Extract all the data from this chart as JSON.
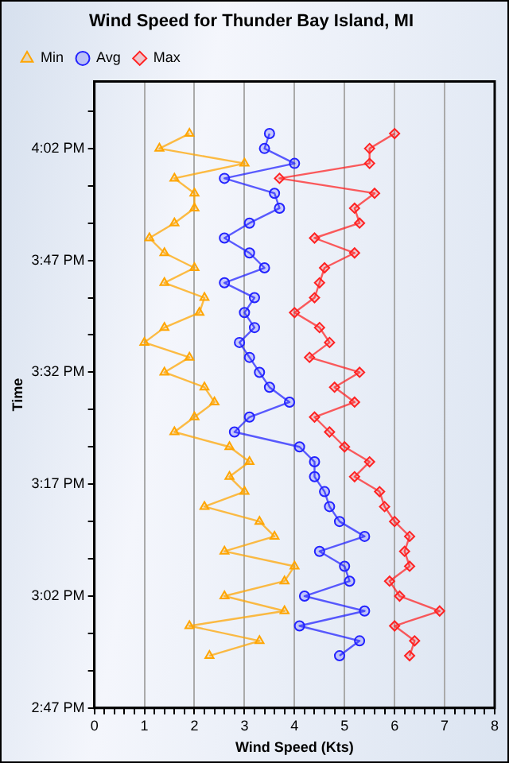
{
  "chart_data": {
    "type": "line",
    "title": "Wind Speed for Thunder Bay Island, MI",
    "xlabel": "Wind Speed (Kts)",
    "ylabel": "Time",
    "orientation": "horizontal",
    "x": [
      16.0667,
      16.0333,
      16.0,
      15.9667,
      15.9333,
      15.9,
      15.8667,
      15.8333,
      15.8,
      15.7667,
      15.7333,
      15.7,
      15.6667,
      15.6333,
      15.6,
      15.5667,
      15.5333,
      15.5,
      15.4667,
      15.4333,
      15.4,
      15.3667,
      15.3333,
      15.3,
      15.2667,
      15.2333,
      15.2,
      15.1667,
      15.1333,
      15.1,
      15.0667,
      15.0333,
      15.0,
      14.9667,
      14.9333,
      14.9
    ],
    "series": [
      {
        "name": "Min",
        "color": "#ffa500",
        "marker": "triangle",
        "values": [
          1.9,
          1.3,
          3.0,
          1.6,
          2.0,
          2.0,
          1.6,
          1.1,
          1.4,
          2.0,
          1.4,
          2.2,
          2.1,
          1.4,
          1.0,
          1.9,
          1.4,
          2.2,
          2.4,
          2.0,
          1.6,
          2.7,
          3.1,
          2.7,
          3.0,
          2.2,
          3.3,
          3.6,
          2.6,
          4.0,
          3.8,
          2.6,
          3.8,
          1.9,
          3.3,
          2.3
        ]
      },
      {
        "name": "Avg",
        "color": "#2222ff",
        "marker": "circle",
        "values": [
          3.5,
          3.4,
          4.0,
          2.6,
          3.6,
          3.7,
          3.1,
          2.6,
          3.1,
          3.4,
          2.6,
          3.2,
          3.0,
          3.2,
          2.9,
          3.1,
          3.3,
          3.5,
          3.9,
          3.1,
          2.8,
          4.1,
          4.4,
          4.4,
          4.6,
          4.7,
          4.9,
          5.4,
          4.5,
          5.0,
          5.1,
          4.2,
          5.4,
          4.1,
          5.3,
          4.9
        ]
      },
      {
        "name": "Max",
        "color": "#ff2222",
        "marker": "diamond",
        "values": [
          6.0,
          5.5,
          5.5,
          3.7,
          5.6,
          5.2,
          5.3,
          4.4,
          5.2,
          4.6,
          4.5,
          4.4,
          4.0,
          4.5,
          4.7,
          4.3,
          5.3,
          4.8,
          5.2,
          4.4,
          4.7,
          5.0,
          5.5,
          5.2,
          5.7,
          5.8,
          6.0,
          6.3,
          6.2,
          6.3,
          5.9,
          6.1,
          6.9,
          6.0,
          6.4,
          6.3
        ]
      }
    ],
    "xlim": [
      0,
      8
    ],
    "xticks": [
      0,
      {
        "value": 0.2,
        "label": null
      },
      {
        "value": 0.4,
        "label": null
      },
      {
        "value": 0.6,
        "label": null
      },
      {
        "value": 0.8,
        "label": null
      },
      1,
      {
        "value": 1.2,
        "label": null
      },
      {
        "value": 1.4,
        "label": null
      },
      {
        "value": 1.6,
        "label": null
      },
      {
        "value": 1.8,
        "label": null
      },
      2,
      {
        "value": 2.2,
        "label": null
      },
      {
        "value": 2.4,
        "label": null
      },
      {
        "value": 2.6,
        "label": null
      },
      {
        "value": 2.8,
        "label": null
      },
      3,
      {
        "value": 3.2,
        "label": null
      },
      {
        "value": 3.4,
        "label": null
      },
      {
        "value": 3.6,
        "label": null
      },
      {
        "value": 3.8,
        "label": null
      },
      4,
      {
        "value": 4.2,
        "label": null
      },
      {
        "value": 4.4,
        "label": null
      },
      {
        "value": 4.6,
        "label": null
      },
      {
        "value": 4.8,
        "label": null
      },
      5,
      {
        "value": 5.2,
        "label": null
      },
      {
        "value": 5.4,
        "label": null
      },
      {
        "value": 5.6,
        "label": null
      },
      {
        "value": 5.8,
        "label": null
      },
      6,
      {
        "value": 6.2,
        "label": null
      },
      {
        "value": 6.4,
        "label": null
      },
      {
        "value": 6.6,
        "label": null
      },
      {
        "value": 6.8,
        "label": null
      },
      7,
      {
        "value": 7.2,
        "label": null
      },
      {
        "value": 7.4,
        "label": null
      },
      {
        "value": 7.6,
        "label": null
      },
      {
        "value": 7.8,
        "label": null
      },
      8
    ],
    "ylim": [
      14.7833,
      16.1833
    ],
    "yticks": [
      {
        "value": 14.7833,
        "label": "2:47 PM"
      },
      {
        "value": 14.8667,
        "label": null
      },
      {
        "value": 14.95,
        "label": null
      },
      {
        "value": 15.0333,
        "label": "3:02 PM"
      },
      {
        "value": 15.1167,
        "label": null
      },
      {
        "value": 15.2,
        "label": null
      },
      {
        "value": 15.2833,
        "label": "3:17 PM"
      },
      {
        "value": 15.3667,
        "label": null
      },
      {
        "value": 15.45,
        "label": null
      },
      {
        "value": 15.5333,
        "label": "3:32 PM"
      },
      {
        "value": 15.6167,
        "label": null
      },
      {
        "value": 15.7,
        "label": null
      },
      {
        "value": 15.7833,
        "label": "3:47 PM"
      },
      {
        "value": 15.8667,
        "label": null
      },
      {
        "value": 15.95,
        "label": null
      },
      {
        "value": 16.0333,
        "label": "4:02 PM"
      },
      {
        "value": 16.1167,
        "label": null
      }
    ],
    "grid": "x",
    "legend": "top left",
    "line_style": "solid"
  }
}
